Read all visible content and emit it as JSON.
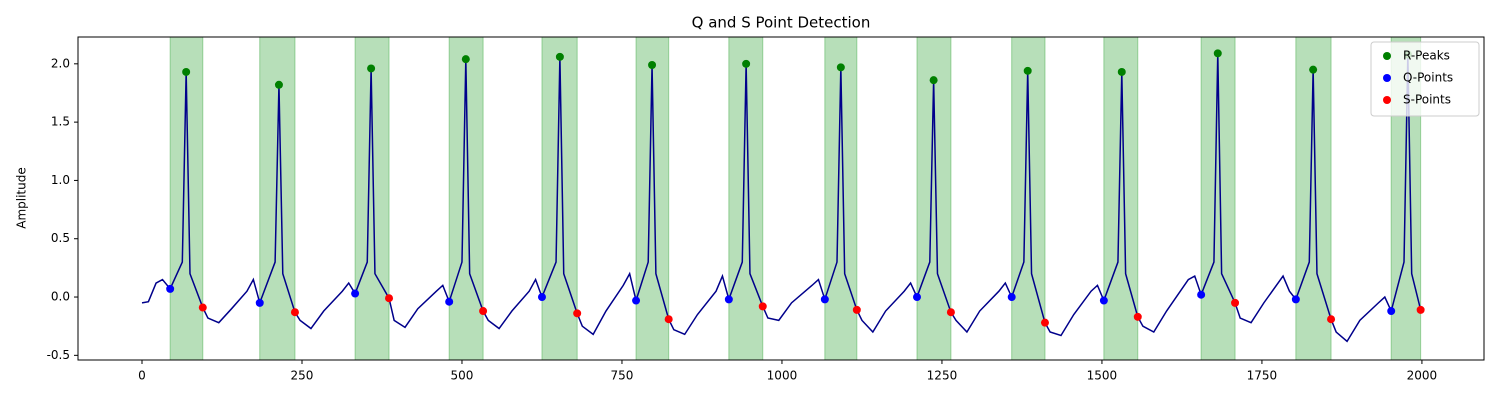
{
  "chart_data": {
    "type": "line",
    "title": "Q and S Point Detection",
    "ylabel": "Amplitude",
    "xlim": [
      -100,
      2097
    ],
    "ylim": [
      -0.54,
      2.23
    ],
    "xticks": [
      0,
      250,
      500,
      750,
      1000,
      1250,
      1500,
      1750,
      2000
    ],
    "yticks": [
      {
        "value": -0.5,
        "label": "-0.5"
      },
      {
        "value": 0,
        "label": "0.0"
      },
      {
        "value": 0.5,
        "label": "0.5"
      },
      {
        "value": 1,
        "label": "1.0"
      },
      {
        "value": 1.5,
        "label": "1.5"
      },
      {
        "value": 2,
        "label": "2.0"
      }
    ],
    "color": "#00008b",
    "span_color": "#4caf50",
    "legend": "upper right",
    "x": [
      0,
      10,
      22,
      32,
      44,
      63,
      69,
      75,
      95,
      103,
      120,
      140,
      164,
      174,
      184,
      208,
      214,
      220,
      239,
      247,
      264,
      284,
      313,
      323,
      333,
      352,
      358,
      364,
      386,
      394,
      411,
      431,
      460,
      470,
      480,
      500,
      506,
      512,
      533,
      541,
      558,
      578,
      605,
      615,
      625,
      647,
      653,
      659,
      680,
      688,
      705,
      725,
      752,
      762,
      772,
      791,
      797,
      803,
      823,
      831,
      848,
      868,
      897,
      907,
      917,
      938,
      944,
      950,
      970,
      978,
      995,
      1015,
      1047,
      1057,
      1067,
      1086,
      1092,
      1098,
      1117,
      1125,
      1142,
      1162,
      1191,
      1201,
      1211,
      1231,
      1237,
      1243,
      1264,
      1272,
      1289,
      1309,
      1339,
      1349,
      1359,
      1378,
      1384,
      1390,
      1411,
      1419,
      1436,
      1456,
      1483,
      1493,
      1503,
      1525,
      1531,
      1537,
      1556,
      1564,
      1581,
      1601,
      1635,
      1645,
      1655,
      1675,
      1681,
      1687,
      1708,
      1716,
      1733,
      1753,
      1783,
      1793,
      1803,
      1824,
      1830,
      1836,
      1858,
      1866,
      1883,
      1903,
      1932,
      1942,
      1952,
      1972,
      1978,
      1984,
      1998
    ],
    "values": [
      -0.05,
      -0.04,
      0.12,
      0.15,
      0.07,
      0.3,
      1.93,
      0.2,
      -0.09,
      -0.18,
      -0.22,
      -0.1,
      0.05,
      0.15,
      -0.05,
      0.3,
      1.82,
      0.2,
      -0.13,
      -0.2,
      -0.27,
      -0.12,
      0.05,
      0.12,
      0.03,
      0.3,
      1.96,
      0.2,
      -0.01,
      -0.2,
      -0.26,
      -0.1,
      0.05,
      0.1,
      -0.04,
      0.3,
      2.04,
      0.2,
      -0.12,
      -0.2,
      -0.27,
      -0.12,
      0.05,
      0.15,
      0.0,
      0.3,
      2.06,
      0.2,
      -0.14,
      -0.25,
      -0.32,
      -0.12,
      0.1,
      0.2,
      -0.03,
      0.3,
      1.99,
      0.2,
      -0.19,
      -0.28,
      -0.32,
      -0.15,
      0.05,
      0.18,
      -0.02,
      0.3,
      2.0,
      0.2,
      -0.08,
      -0.18,
      -0.2,
      -0.05,
      0.1,
      0.15,
      -0.02,
      0.3,
      1.97,
      0.2,
      -0.11,
      -0.2,
      -0.3,
      -0.12,
      0.05,
      0.12,
      0.0,
      0.3,
      1.86,
      0.2,
      -0.13,
      -0.2,
      -0.3,
      -0.12,
      0.05,
      0.12,
      0.0,
      0.3,
      1.94,
      0.2,
      -0.22,
      -0.3,
      -0.33,
      -0.15,
      0.05,
      0.1,
      -0.03,
      0.3,
      1.93,
      0.2,
      -0.17,
      -0.25,
      -0.3,
      -0.12,
      0.15,
      0.18,
      0.02,
      0.3,
      2.09,
      0.2,
      -0.05,
      -0.18,
      -0.22,
      -0.05,
      0.18,
      0.05,
      -0.02,
      0.3,
      1.95,
      0.2,
      -0.19,
      -0.3,
      -0.38,
      -0.2,
      -0.05,
      0.0,
      -0.12,
      0.3,
      2.08,
      0.2,
      -0.11
    ],
    "series": [
      {
        "name": "R-Peaks",
        "color": "#008000",
        "x": [
          69,
          214,
          358,
          506,
          653,
          797,
          944,
          1092,
          1237,
          1384,
          1531,
          1681,
          1830,
          1978
        ],
        "values": [
          1.93,
          1.82,
          1.96,
          2.04,
          2.06,
          1.99,
          2.0,
          1.97,
          1.86,
          1.94,
          1.93,
          2.09,
          1.95,
          2.08
        ]
      },
      {
        "name": "Q-Points",
        "color": "#0000ff",
        "x": [
          44,
          184,
          333,
          480,
          625,
          772,
          917,
          1067,
          1211,
          1359,
          1503,
          1655,
          1803,
          1952
        ],
        "values": [
          0.07,
          -0.05,
          0.03,
          -0.04,
          0.0,
          -0.03,
          -0.02,
          -0.02,
          0.0,
          0.0,
          -0.03,
          0.02,
          -0.02,
          -0.12
        ]
      },
      {
        "name": "S-Points",
        "color": "#ff0000",
        "x": [
          95,
          239,
          386,
          533,
          680,
          823,
          970,
          1117,
          1264,
          1411,
          1556,
          1708,
          1858,
          1998
        ],
        "values": [
          -0.09,
          -0.13,
          -0.01,
          -0.12,
          -0.14,
          -0.19,
          -0.08,
          -0.11,
          -0.13,
          -0.22,
          -0.17,
          -0.05,
          -0.19,
          -0.11
        ]
      }
    ]
  }
}
